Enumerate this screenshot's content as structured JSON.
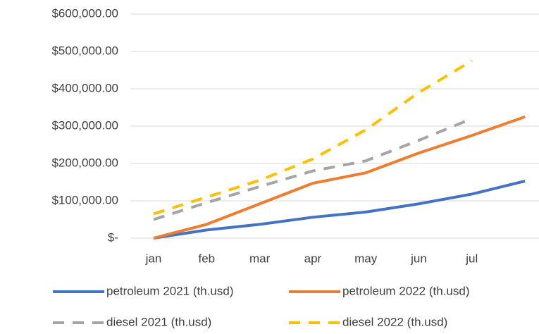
{
  "chart_data": {
    "type": "line",
    "categories": [
      "jan",
      "feb",
      "mar",
      "apr",
      "may",
      "jun",
      "jul",
      null
    ],
    "series": [
      {
        "name": "petroleum 2021 (th.usd)",
        "color": "#4472c4",
        "dashed": false,
        "values": [
          0,
          22000,
          37000,
          56000,
          70000,
          92000,
          118000,
          153000
        ]
      },
      {
        "name": "petroleum 2022 (th.usd)",
        "color": "#ed7d31",
        "dashed": false,
        "values": [
          0,
          37000,
          92000,
          147000,
          175000,
          228000,
          275000,
          325000
        ]
      },
      {
        "name": "diesel 2021 (th.usd)",
        "color": "#a5a5a5",
        "dashed": true,
        "values": [
          50000,
          95000,
          138000,
          180000,
          207000,
          262000,
          320000,
          null
        ]
      },
      {
        "name": "diesel 2022 (th.usd)",
        "color": "#ffc000",
        "dashed": true,
        "values": [
          65000,
          110000,
          155000,
          212000,
          290000,
          390000,
          475000,
          null
        ]
      }
    ],
    "ylim": [
      0,
      600000
    ],
    "yticks": [
      {
        "value": 0,
        "label": "$-"
      },
      {
        "value": 100000,
        "label": "$100,000.00"
      },
      {
        "value": 200000,
        "label": "$200,000.00"
      },
      {
        "value": 300000,
        "label": "$300,000.00"
      },
      {
        "value": 400000,
        "label": "$400,000.00"
      },
      {
        "value": 500000,
        "label": "$500,000.00"
      },
      {
        "value": 600000,
        "label": "$600,000.00"
      }
    ],
    "grid": true,
    "legend": "bottom"
  }
}
